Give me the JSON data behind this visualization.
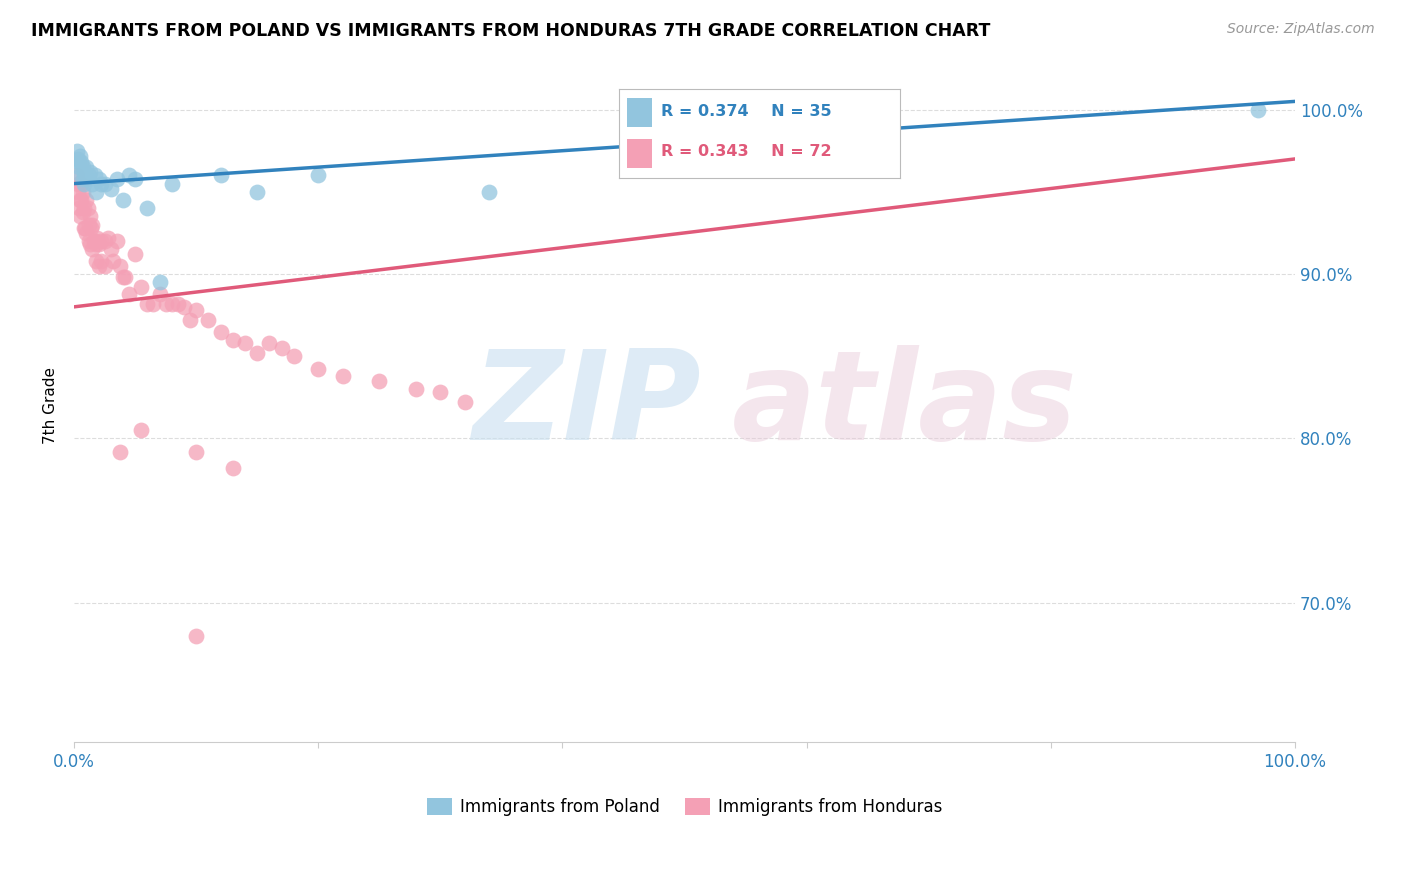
{
  "title": "IMMIGRANTS FROM POLAND VS IMMIGRANTS FROM HONDURAS 7TH GRADE CORRELATION CHART",
  "source": "Source: ZipAtlas.com",
  "ylabel": "7th Grade",
  "xmin": 0.0,
  "xmax": 1.0,
  "ymin": 0.615,
  "ymax": 1.025,
  "yticks": [
    0.7,
    0.8,
    0.9,
    1.0
  ],
  "ytick_labels": [
    "70.0%",
    "80.0%",
    "90.0%",
    "100.0%"
  ],
  "poland_color": "#92c5de",
  "honduras_color": "#f4a0b5",
  "poland_line_color": "#3182bd",
  "honduras_line_color": "#e05a7a",
  "poland_R": 0.374,
  "poland_N": 35,
  "honduras_R": 0.343,
  "honduras_N": 72,
  "poland_scatter_x": [
    0.002,
    0.003,
    0.004,
    0.004,
    0.005,
    0.005,
    0.006,
    0.007,
    0.007,
    0.008,
    0.008,
    0.009,
    0.01,
    0.011,
    0.012,
    0.013,
    0.015,
    0.017,
    0.018,
    0.02,
    0.022,
    0.025,
    0.03,
    0.035,
    0.04,
    0.045,
    0.05,
    0.06,
    0.07,
    0.08,
    0.12,
    0.15,
    0.2,
    0.34,
    0.97
  ],
  "poland_scatter_y": [
    0.975,
    0.97,
    0.968,
    0.965,
    0.972,
    0.96,
    0.968,
    0.965,
    0.958,
    0.962,
    0.955,
    0.96,
    0.965,
    0.958,
    0.96,
    0.962,
    0.955,
    0.96,
    0.95,
    0.958,
    0.955,
    0.955,
    0.952,
    0.958,
    0.945,
    0.96,
    0.958,
    0.94,
    0.895,
    0.955,
    0.96,
    0.95,
    0.96,
    0.95,
    1.0
  ],
  "honduras_scatter_x": [
    0.002,
    0.003,
    0.003,
    0.004,
    0.005,
    0.005,
    0.006,
    0.006,
    0.007,
    0.007,
    0.008,
    0.008,
    0.009,
    0.01,
    0.01,
    0.011,
    0.012,
    0.012,
    0.013,
    0.013,
    0.014,
    0.015,
    0.015,
    0.016,
    0.017,
    0.018,
    0.018,
    0.019,
    0.02,
    0.02,
    0.022,
    0.022,
    0.025,
    0.025,
    0.028,
    0.03,
    0.032,
    0.035,
    0.038,
    0.04,
    0.042,
    0.045,
    0.05,
    0.055,
    0.06,
    0.065,
    0.07,
    0.075,
    0.08,
    0.085,
    0.09,
    0.095,
    0.1,
    0.11,
    0.12,
    0.13,
    0.14,
    0.15,
    0.16,
    0.17,
    0.18,
    0.2,
    0.22,
    0.25,
    0.28,
    0.3,
    0.32,
    0.038,
    0.055,
    0.1,
    0.13,
    0.1
  ],
  "honduras_scatter_y": [
    0.96,
    0.95,
    0.955,
    0.94,
    0.945,
    0.935,
    0.955,
    0.945,
    0.95,
    0.938,
    0.94,
    0.928,
    0.928,
    0.945,
    0.925,
    0.94,
    0.93,
    0.92,
    0.935,
    0.918,
    0.928,
    0.93,
    0.915,
    0.92,
    0.92,
    0.918,
    0.908,
    0.922,
    0.918,
    0.905,
    0.92,
    0.908,
    0.92,
    0.905,
    0.922,
    0.915,
    0.908,
    0.92,
    0.905,
    0.898,
    0.898,
    0.888,
    0.912,
    0.892,
    0.882,
    0.882,
    0.888,
    0.882,
    0.882,
    0.882,
    0.88,
    0.872,
    0.878,
    0.872,
    0.865,
    0.86,
    0.858,
    0.852,
    0.858,
    0.855,
    0.85,
    0.842,
    0.838,
    0.835,
    0.83,
    0.828,
    0.822,
    0.792,
    0.805,
    0.792,
    0.782,
    0.68
  ],
  "poland_trendline_x": [
    0.0,
    1.0
  ],
  "poland_trendline_y": [
    0.955,
    1.005
  ],
  "honduras_trendline_x": [
    0.0,
    1.0
  ],
  "honduras_trendline_y": [
    0.88,
    0.97
  ],
  "background_color": "#ffffff",
  "grid_color": "#dddddd"
}
